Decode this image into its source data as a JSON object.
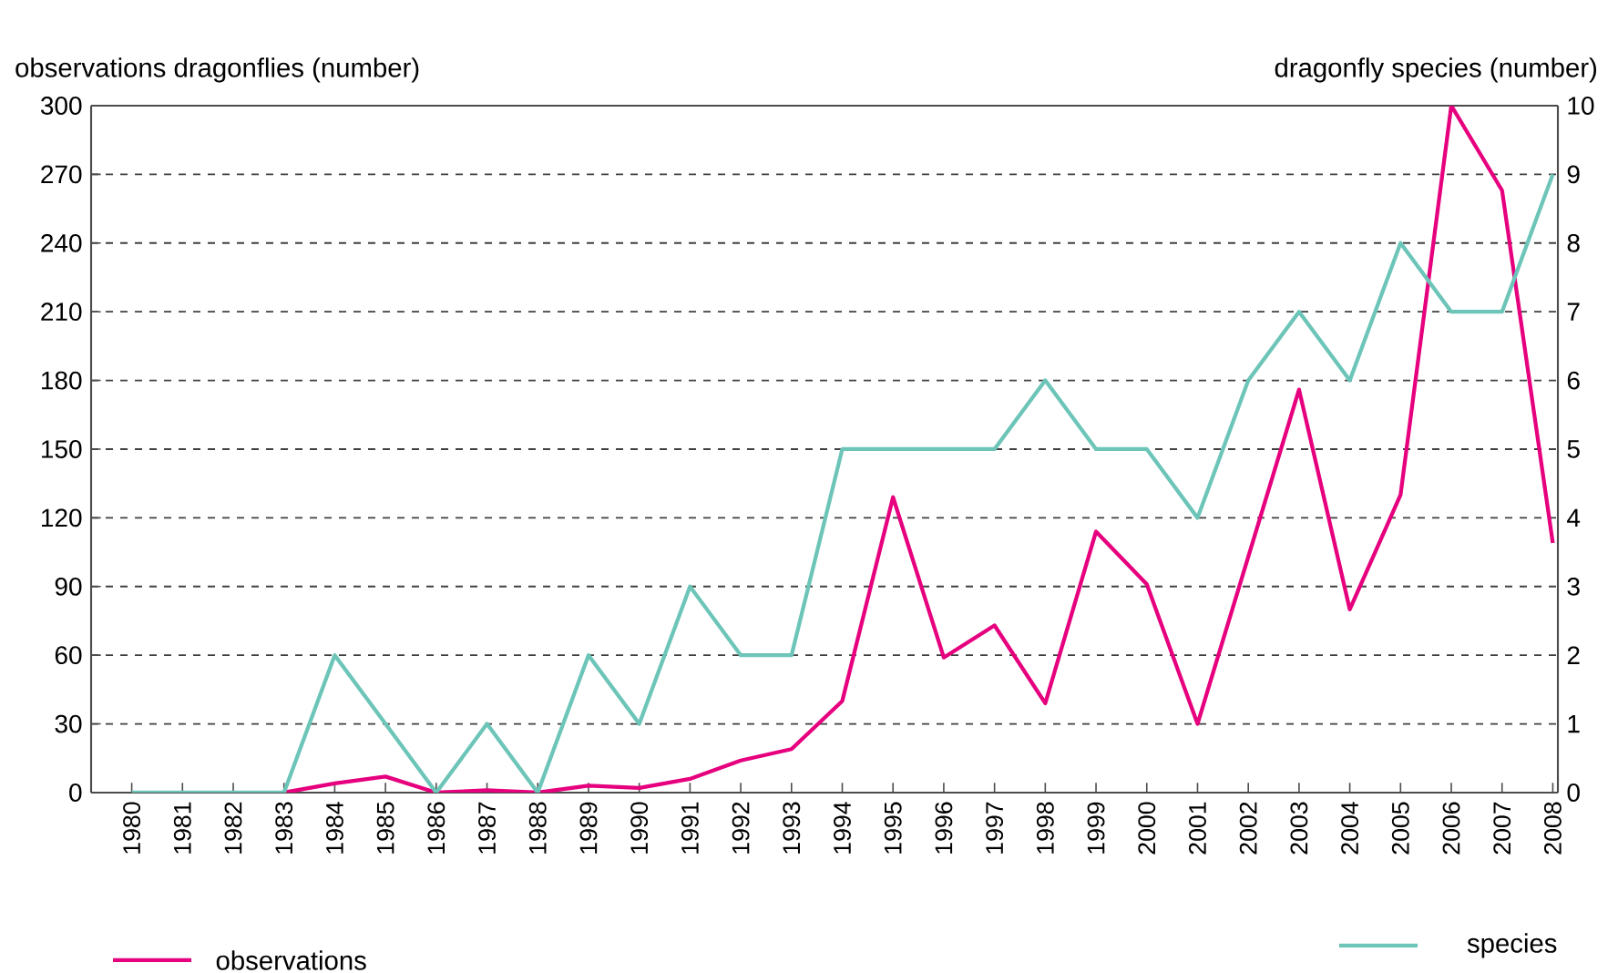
{
  "chart_data": {
    "type": "line",
    "ylabel": "observations dragonflies (number)",
    "y2label": "dragonfly species (number)",
    "x": [
      1980,
      1981,
      1982,
      1983,
      1984,
      1985,
      1986,
      1987,
      1988,
      1989,
      1990,
      1991,
      1992,
      1993,
      1994,
      1995,
      1996,
      1997,
      1998,
      1999,
      2000,
      2001,
      2002,
      2003,
      2004,
      2005,
      2006,
      2007,
      2008
    ],
    "xlim": [
      1979.2,
      2008.1
    ],
    "xticks": [
      1980,
      1981,
      1982,
      1983,
      1984,
      1985,
      1986,
      1987,
      1988,
      1989,
      1990,
      1991,
      1992,
      1993,
      1994,
      1995,
      1996,
      1997,
      1998,
      1999,
      2000,
      2001,
      2002,
      2003,
      2004,
      2005,
      2006,
      2007,
      2008
    ],
    "ylim": [
      0,
      300
    ],
    "yticks": [
      0,
      30,
      60,
      90,
      120,
      150,
      180,
      210,
      240,
      270,
      300
    ],
    "y2lim": [
      0,
      10
    ],
    "y2ticks": [
      0,
      1,
      2,
      3,
      4,
      5,
      6,
      7,
      8,
      9,
      10
    ],
    "series": [
      {
        "name": "observations",
        "color": "#e6007e",
        "values": [
          null,
          null,
          null,
          0,
          4,
          7,
          0,
          1,
          0,
          3,
          2,
          6,
          14,
          19,
          40,
          129,
          59,
          73,
          39,
          114,
          91,
          30,
          103,
          176,
          80,
          130,
          300,
          263,
          109
        ]
      },
      {
        "name": "species",
        "color": "#6cc5b8",
        "axis": "y2",
        "values": [
          0,
          0,
          0,
          0,
          2,
          1,
          0,
          1,
          0,
          2,
          1,
          3,
          2,
          2,
          5,
          5,
          5,
          5,
          6,
          5,
          5,
          4,
          6,
          7,
          6,
          8,
          7,
          7,
          9
        ]
      }
    ],
    "grid": "y",
    "legend": "bottom",
    "marker": "none",
    "line_style": "solid"
  }
}
